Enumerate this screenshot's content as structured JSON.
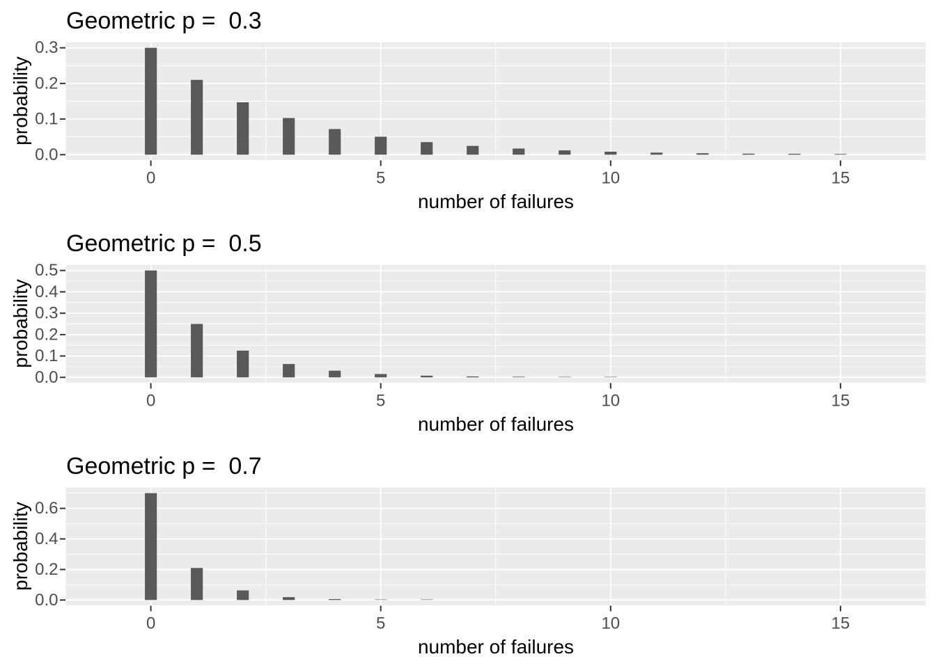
{
  "figure": {
    "background": "#FFFFFF",
    "panel_background": "#EBEBEB",
    "grid_color": "#FFFFFF",
    "bar_color": "#595959",
    "tick_label_color": "#4D4D4D",
    "tick_mark_color": "#333333",
    "text_color": "#000000"
  },
  "chart_data": [
    {
      "type": "bar",
      "title": "Geometric p =  0.3",
      "xlabel": "number of failures",
      "ylabel": "probability",
      "x": [
        0,
        1,
        2,
        3,
        4,
        5,
        6,
        7,
        8,
        9,
        10,
        11,
        12,
        13,
        14,
        15
      ],
      "values": [
        0.3,
        0.21,
        0.147,
        0.1029,
        0.07203,
        0.050421,
        0.0352947,
        0.0247063,
        0.0172944,
        0.0121061,
        0.0084743,
        0.005932,
        0.0041524,
        0.0029067,
        0.0020347,
        0.0014243
      ],
      "xlim": [
        -1.85,
        16.85
      ],
      "ylim": [
        -0.015,
        0.315
      ],
      "x_ticks": [
        0,
        5,
        10,
        15
      ],
      "x_tick_labels": [
        "0",
        "5",
        "10",
        "15"
      ],
      "y_ticks": [
        0,
        0.1,
        0.2,
        0.3
      ],
      "y_tick_labels": [
        "0.0",
        "0.1",
        "0.2",
        "0.3"
      ],
      "x_minor_breaks": [
        2.5,
        7.5,
        12.5
      ],
      "y_minor_breaks": [
        0.05,
        0.15,
        0.25
      ],
      "bar_width": 0.26,
      "grid": true,
      "legend": "none"
    },
    {
      "type": "bar",
      "title": "Geometric p =  0.5",
      "xlabel": "number of failures",
      "ylabel": "probability",
      "x": [
        0,
        1,
        2,
        3,
        4,
        5,
        6,
        7,
        8,
        9,
        10,
        11,
        12,
        13,
        14,
        15
      ],
      "values": [
        0.5,
        0.25,
        0.125,
        0.0625,
        0.03125,
        0.015625,
        0.0078125,
        0.0039063,
        0.0019531,
        0.0009766,
        0.0004883,
        0.0002441,
        0.0001221,
        6.1e-05,
        3.05e-05,
        1.53e-05
      ],
      "xlim": [
        -1.85,
        16.85
      ],
      "ylim": [
        -0.025,
        0.525
      ],
      "x_ticks": [
        0,
        5,
        10,
        15
      ],
      "x_tick_labels": [
        "0",
        "5",
        "10",
        "15"
      ],
      "y_ticks": [
        0,
        0.1,
        0.2,
        0.3,
        0.4,
        0.5
      ],
      "y_tick_labels": [
        "0.0",
        "0.1",
        "0.2",
        "0.3",
        "0.4",
        "0.5"
      ],
      "x_minor_breaks": [
        2.5,
        7.5,
        12.5
      ],
      "y_minor_breaks": [
        0.05,
        0.15,
        0.25,
        0.35,
        0.45
      ],
      "bar_width": 0.26,
      "grid": true,
      "legend": "none"
    },
    {
      "type": "bar",
      "title": "Geometric p =  0.7",
      "xlabel": "number of failures",
      "ylabel": "probability",
      "x": [
        0,
        1,
        2,
        3,
        4,
        5,
        6,
        7,
        8,
        9,
        10,
        11,
        12,
        13,
        14,
        15
      ],
      "values": [
        0.7,
        0.21,
        0.063,
        0.0189,
        0.00567,
        0.001701,
        0.0005103,
        0.0001531,
        4.59e-05,
        1.38e-05,
        4.1e-06,
        1.2e-06,
        4e-07,
        1e-07,
        0,
        0
      ],
      "xlim": [
        -1.85,
        16.85
      ],
      "ylim": [
        -0.035,
        0.735
      ],
      "x_ticks": [
        0,
        5,
        10,
        15
      ],
      "x_tick_labels": [
        "0",
        "5",
        "10",
        "15"
      ],
      "y_ticks": [
        0,
        0.2,
        0.4,
        0.6
      ],
      "y_tick_labels": [
        "0.0",
        "0.2",
        "0.4",
        "0.6"
      ],
      "x_minor_breaks": [
        2.5,
        7.5,
        12.5
      ],
      "y_minor_breaks": [
        0.1,
        0.3,
        0.5,
        0.7
      ],
      "bar_width": 0.26,
      "grid": true,
      "legend": "none"
    }
  ]
}
